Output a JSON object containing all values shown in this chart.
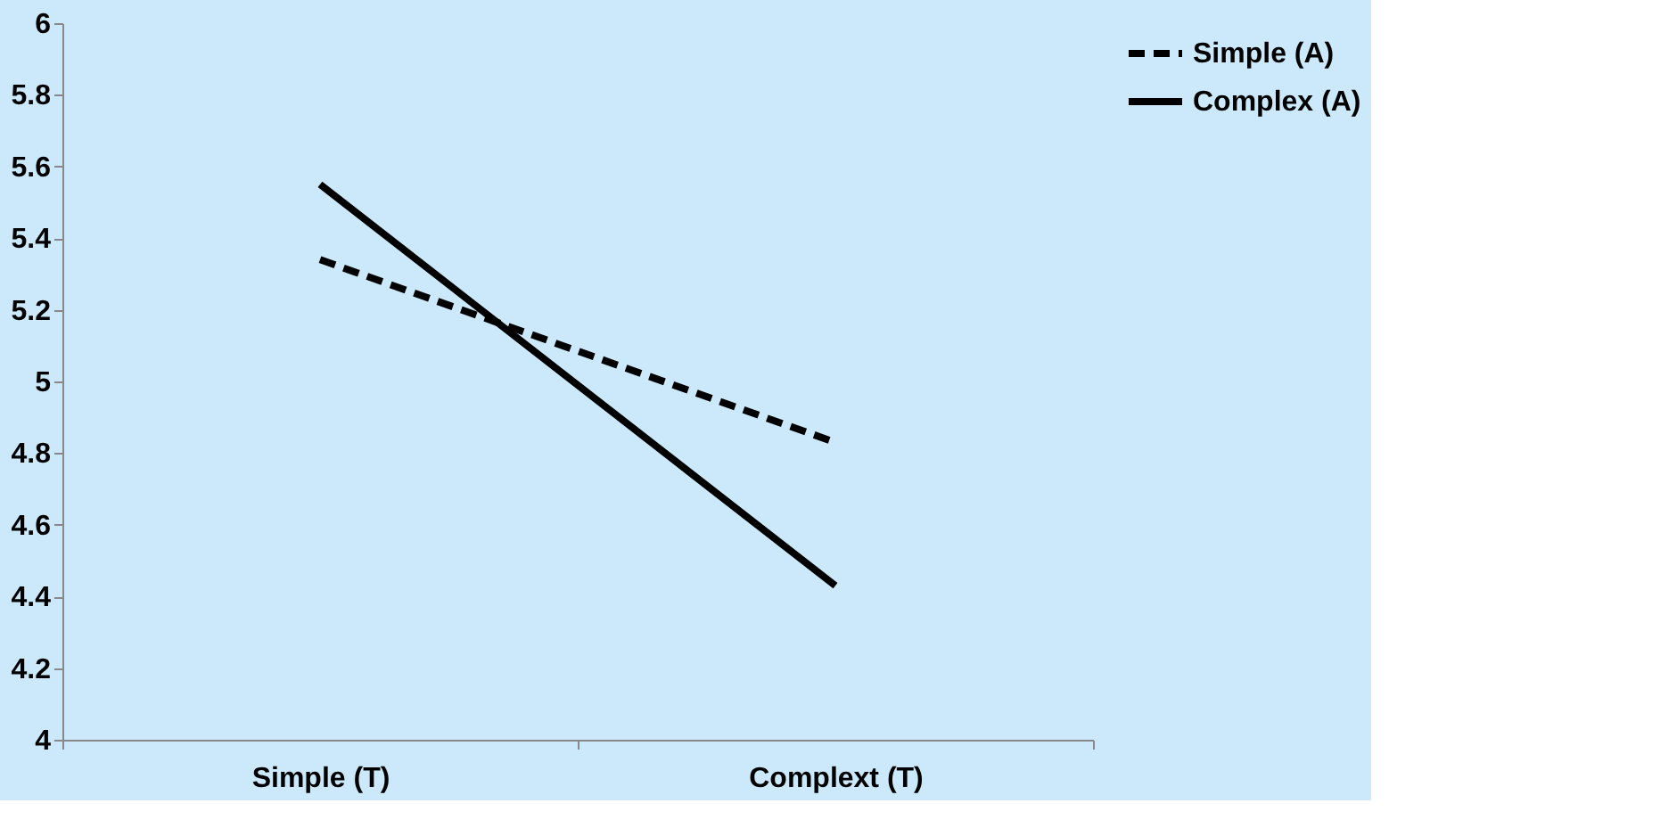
{
  "chart_data": {
    "type": "line",
    "categories": [
      "Simple (T)",
      "Complext (T)"
    ],
    "series": [
      {
        "name": "Simple (A)",
        "color": "#000000",
        "line_style": "dashed",
        "values": [
          5.34,
          4.83
        ]
      },
      {
        "name": "Complex (A)",
        "color": "#000000",
        "line_style": "solid",
        "values": [
          5.55,
          4.43
        ]
      }
    ],
    "ylim": [
      4,
      6
    ],
    "yticks": [
      4,
      4.2,
      4.4,
      4.6,
      4.8,
      5,
      5.2,
      5.4,
      5.6,
      5.8,
      6
    ],
    "grid": false,
    "legend": "right",
    "marker": "none"
  }
}
